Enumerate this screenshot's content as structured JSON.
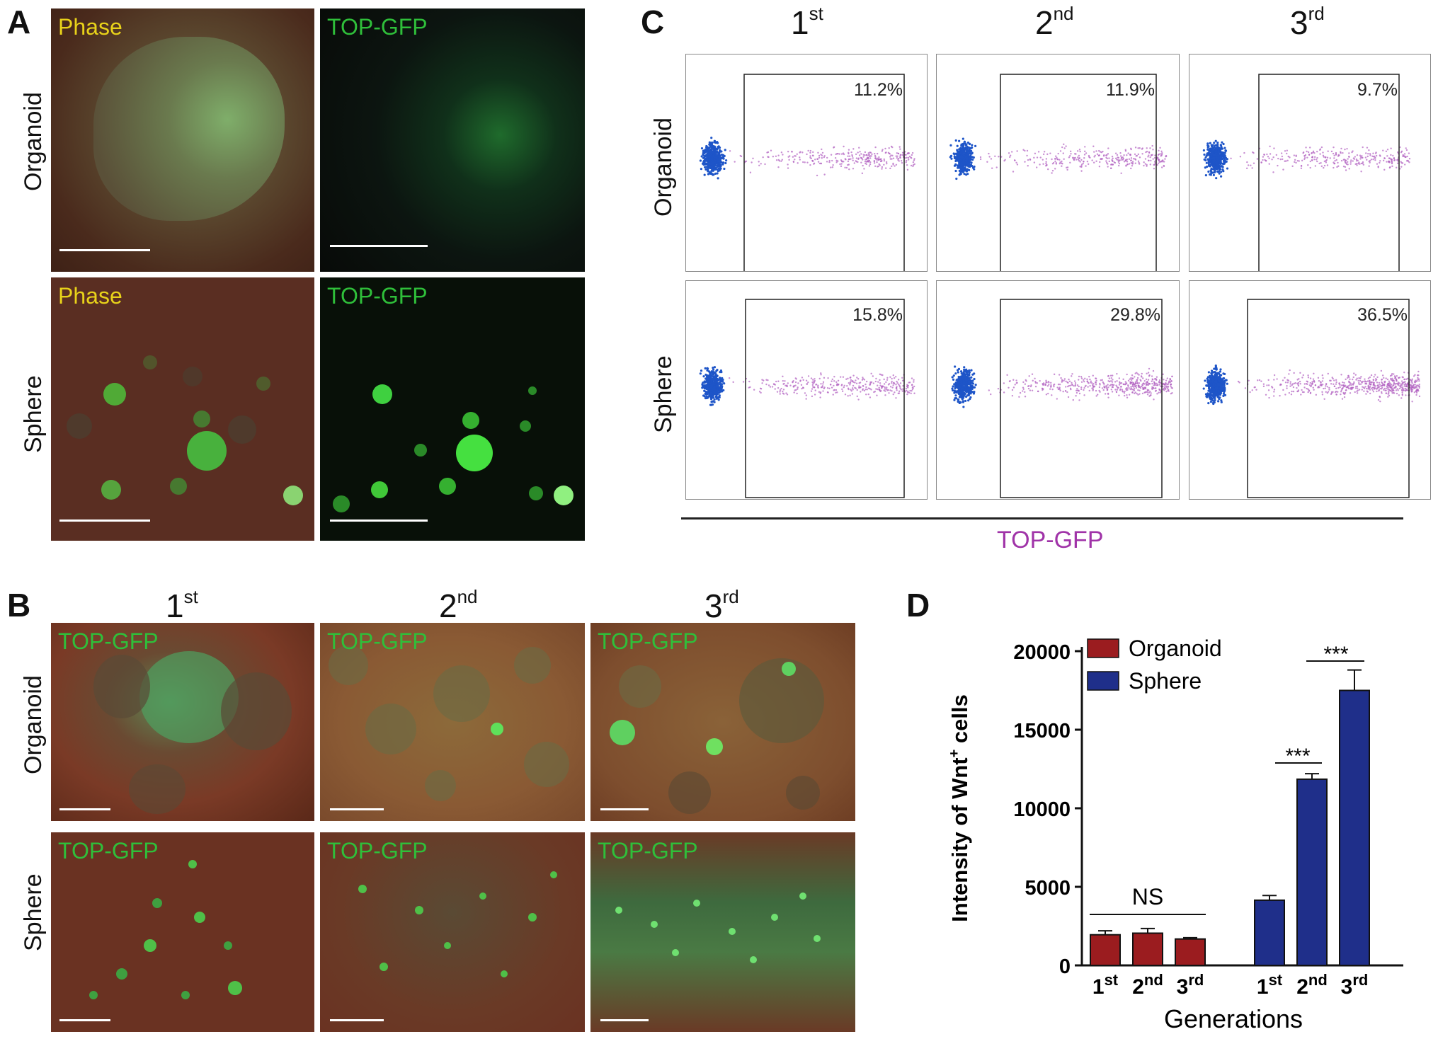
{
  "panels": {
    "a": "A",
    "b": "B",
    "c": "C",
    "d": "D"
  },
  "row_labels": {
    "organoid": "Organoid",
    "sphere": "Sphere"
  },
  "micrograph_labels": {
    "phase": "Phase",
    "gfp": "TOP-GFP"
  },
  "generations": {
    "first": "1",
    "first_sup": "st",
    "second": "2",
    "second_sup": "nd",
    "third": "3",
    "third_sup": "rd"
  },
  "flow": {
    "xlabel": "TOP-GFP",
    "organoid": [
      "11.2%",
      "11.9%",
      "9.7%"
    ],
    "sphere": [
      "15.8%",
      "29.8%",
      "36.5%"
    ]
  },
  "colors": {
    "organoid_bar": "#9b1c1f",
    "sphere_bar": "#1f2f8a",
    "flow_neg": "#1e55c8",
    "flow_pos": "#b060c0",
    "gfp_green": "#2fcf3a",
    "phase_yellow": "#e8d21a"
  },
  "chart_data": {
    "type": "bar",
    "categories": [
      "1st",
      "2nd",
      "3rd"
    ],
    "series": [
      {
        "name": "Organoid",
        "values": [
          1950,
          2050,
          1680
        ],
        "errors": [
          250,
          300,
          80
        ]
      },
      {
        "name": "Sphere",
        "values": [
          4150,
          11850,
          17500
        ],
        "errors": [
          300,
          350,
          1300
        ]
      }
    ],
    "ylabel_main": "Intensity of Wnt",
    "ylabel_sup": "+",
    "ylabel_tail": " cells",
    "xlabel": "Generations",
    "ylim": [
      0,
      20000
    ],
    "yticks": [
      "0",
      "5000",
      "10000",
      "15000",
      "20000"
    ],
    "tick_values": [
      0,
      5000,
      10000,
      15000,
      20000
    ],
    "annotations": {
      "ns": "NS",
      "sig1": "***",
      "sig2": "***"
    },
    "legend": "top-left"
  }
}
